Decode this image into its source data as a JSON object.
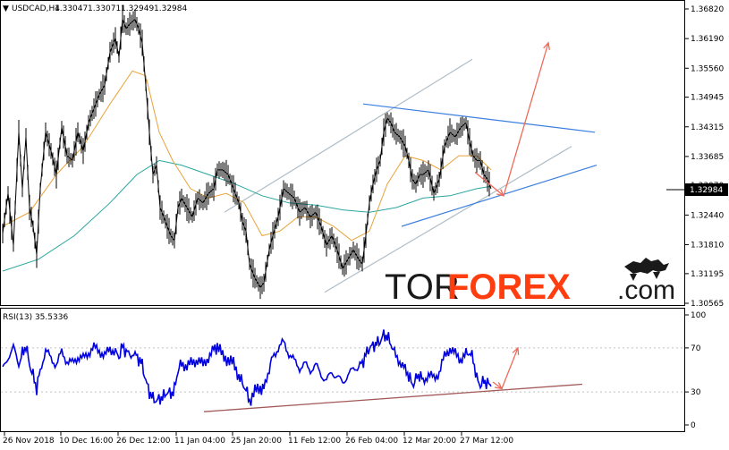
{
  "chart_data": [
    {
      "type": "line",
      "symbol": "USDCAD,H4",
      "ohlc": [
        "1.33047",
        "1.33071",
        "1.32949",
        "1.32984"
      ],
      "current_price_label": "1.32984",
      "ylim": [
        1.305,
        1.369
      ],
      "y_ticks": [
        "1.36820",
        "1.36190",
        "1.35560",
        "1.34945",
        "1.34315",
        "1.33685",
        "1.33070",
        "1.32440",
        "1.31810",
        "1.31195",
        "1.30565"
      ],
      "x_ticks": [
        "26 Nov 2018",
        "10 Dec 16:00",
        "26 Dec 12:00",
        "11 Jan 04:00",
        "25 Jan 20:00",
        "11 Feb 12:00",
        "26 Feb 04:00",
        "12 Mar 20:00",
        "27 Mar 12:00"
      ],
      "price_series": [
        [
          0,
          1.3205
        ],
        [
          6,
          1.329
        ],
        [
          12,
          1.318
        ],
        [
          18,
          1.342
        ],
        [
          22,
          1.33
        ],
        [
          26,
          1.341
        ],
        [
          30,
          1.326
        ],
        [
          34,
          1.322
        ],
        [
          38,
          1.316
        ],
        [
          42,
          1.33
        ],
        [
          48,
          1.342
        ],
        [
          54,
          1.338
        ],
        [
          60,
          1.333
        ],
        [
          66,
          1.343
        ],
        [
          72,
          1.337
        ],
        [
          78,
          1.336
        ],
        [
          84,
          1.342
        ],
        [
          90,
          1.338
        ],
        [
          96,
          1.344
        ],
        [
          102,
          1.347
        ],
        [
          108,
          1.35
        ],
        [
          114,
          1.352
        ],
        [
          120,
          1.359
        ],
        [
          126,
          1.362
        ],
        [
          130,
          1.358
        ],
        [
          134,
          1.366
        ],
        [
          138,
          1.364
        ],
        [
          142,
          1.365
        ],
        [
          148,
          1.366
        ],
        [
          152,
          1.364
        ],
        [
          156,
          1.361
        ],
        [
          160,
          1.352
        ],
        [
          164,
          1.342
        ],
        [
          168,
          1.333
        ],
        [
          172,
          1.335
        ],
        [
          176,
          1.326
        ],
        [
          180,
          1.324
        ],
        [
          184,
          1.322
        ],
        [
          188,
          1.32
        ],
        [
          192,
          1.319
        ],
        [
          196,
          1.326
        ],
        [
          200,
          1.328
        ],
        [
          206,
          1.326
        ],
        [
          212,
          1.324
        ],
        [
          218,
          1.328
        ],
        [
          224,
          1.327
        ],
        [
          230,
          1.329
        ],
        [
          236,
          1.33
        ],
        [
          240,
          1.334
        ],
        [
          246,
          1.334
        ],
        [
          252,
          1.333
        ],
        [
          258,
          1.33
        ],
        [
          264,
          1.327
        ],
        [
          268,
          1.323
        ],
        [
          272,
          1.321
        ],
        [
          276,
          1.314
        ],
        [
          282,
          1.311
        ],
        [
          288,
          1.309
        ],
        [
          292,
          1.31
        ],
        [
          298,
          1.317
        ],
        [
          302,
          1.32
        ],
        [
          308,
          1.324
        ],
        [
          314,
          1.33
        ],
        [
          320,
          1.329
        ],
        [
          326,
          1.328
        ],
        [
          332,
          1.325
        ],
        [
          338,
          1.326
        ],
        [
          344,
          1.324
        ],
        [
          350,
          1.325
        ],
        [
          356,
          1.322
        ],
        [
          362,
          1.318
        ],
        [
          368,
          1.32
        ],
        [
          374,
          1.317
        ],
        [
          380,
          1.313
        ],
        [
          386,
          1.315
        ],
        [
          392,
          1.317
        ],
        [
          398,
          1.315
        ],
        [
          402,
          1.314
        ],
        [
          406,
          1.32
        ],
        [
          410,
          1.327
        ],
        [
          414,
          1.331
        ],
        [
          418,
          1.334
        ],
        [
          422,
          1.336
        ],
        [
          426,
          1.342
        ],
        [
          430,
          1.345
        ],
        [
          434,
          1.344
        ],
        [
          438,
          1.342
        ],
        [
          444,
          1.341
        ],
        [
          450,
          1.339
        ],
        [
          454,
          1.336
        ],
        [
          458,
          1.332
        ],
        [
          462,
          1.331
        ],
        [
          466,
          1.333
        ],
        [
          470,
          1.333
        ],
        [
          476,
          1.334
        ],
        [
          482,
          1.329
        ],
        [
          488,
          1.332
        ],
        [
          494,
          1.339
        ],
        [
          500,
          1.342
        ],
        [
          506,
          1.341
        ],
        [
          512,
          1.343
        ],
        [
          518,
          1.344
        ],
        [
          522,
          1.34
        ],
        [
          526,
          1.337
        ],
        [
          530,
          1.336
        ],
        [
          534,
          1.336
        ],
        [
          538,
          1.333
        ],
        [
          542,
          1.332
        ],
        [
          546,
          1.33
        ]
      ],
      "ma_fast": [
        [
          0,
          1.322
        ],
        [
          30,
          1.325
        ],
        [
          60,
          1.333
        ],
        [
          90,
          1.339
        ],
        [
          120,
          1.348
        ],
        [
          145,
          1.355
        ],
        [
          160,
          1.354
        ],
        [
          175,
          1.342
        ],
        [
          190,
          1.336
        ],
        [
          210,
          1.33
        ],
        [
          230,
          1.328
        ],
        [
          250,
          1.329
        ],
        [
          270,
          1.327
        ],
        [
          290,
          1.32
        ],
        [
          310,
          1.321
        ],
        [
          330,
          1.324
        ],
        [
          350,
          1.324
        ],
        [
          370,
          1.322
        ],
        [
          390,
          1.319
        ],
        [
          410,
          1.321
        ],
        [
          430,
          1.331
        ],
        [
          450,
          1.337
        ],
        [
          470,
          1.336
        ],
        [
          490,
          1.334
        ],
        [
          510,
          1.337
        ],
        [
          530,
          1.337
        ],
        [
          546,
          1.334
        ]
      ],
      "ma_slow": [
        [
          0,
          1.3125
        ],
        [
          40,
          1.315
        ],
        [
          80,
          1.32
        ],
        [
          120,
          1.327
        ],
        [
          150,
          1.333
        ],
        [
          175,
          1.336
        ],
        [
          200,
          1.335
        ],
        [
          230,
          1.333
        ],
        [
          260,
          1.331
        ],
        [
          290,
          1.3285
        ],
        [
          320,
          1.327
        ],
        [
          350,
          1.3265
        ],
        [
          380,
          1.3255
        ],
        [
          410,
          1.325
        ],
        [
          440,
          1.326
        ],
        [
          470,
          1.328
        ],
        [
          500,
          1.3285
        ],
        [
          530,
          1.33
        ],
        [
          546,
          1.3305
        ]
      ],
      "channel_outer": [
        [
          [
            248,
            1.325
          ],
          [
            525,
            1.3575
          ]
        ],
        [
          [
            360,
            1.308
          ],
          [
            636,
            1.339
          ]
        ]
      ],
      "triangle_lines": [
        [
          [
            403,
            1.348
          ],
          [
            662,
            1.342
          ]
        ],
        [
          [
            446,
            1.322
          ],
          [
            664,
            1.335
          ]
        ]
      ],
      "forecast_arrows": [
        [
          [
            528,
            1.3335
          ],
          [
            560,
            1.3285
          ]
        ],
        [
          [
            560,
            1.3285
          ],
          [
            610,
            1.361
          ]
        ]
      ]
    },
    {
      "type": "line",
      "indicator_label": "RSI(13) 35.5336",
      "ylim": [
        0,
        100
      ],
      "y_ticks": [
        "100",
        "70",
        "30",
        "0"
      ],
      "rsi_series": [
        [
          0,
          50
        ],
        [
          6,
          62
        ],
        [
          12,
          70
        ],
        [
          18,
          55
        ],
        [
          22,
          65
        ],
        [
          26,
          72
        ],
        [
          30,
          55
        ],
        [
          34,
          45
        ],
        [
          38,
          33
        ],
        [
          42,
          50
        ],
        [
          48,
          68
        ],
        [
          54,
          60
        ],
        [
          60,
          55
        ],
        [
          66,
          66
        ],
        [
          72,
          58
        ],
        [
          78,
          56
        ],
        [
          84,
          62
        ],
        [
          90,
          60
        ],
        [
          96,
          66
        ],
        [
          102,
          70
        ],
        [
          108,
          68
        ],
        [
          114,
          62
        ],
        [
          120,
          70
        ],
        [
          126,
          66
        ],
        [
          130,
          62
        ],
        [
          134,
          72
        ],
        [
          138,
          66
        ],
        [
          142,
          65
        ],
        [
          148,
          64
        ],
        [
          152,
          60
        ],
        [
          156,
          55
        ],
        [
          160,
          40
        ],
        [
          164,
          30
        ],
        [
          168,
          24
        ],
        [
          172,
          22
        ],
        [
          176,
          24
        ],
        [
          180,
          26
        ],
        [
          184,
          30
        ],
        [
          188,
          28
        ],
        [
          192,
          32
        ],
        [
          196,
          50
        ],
        [
          200,
          56
        ],
        [
          206,
          54
        ],
        [
          212,
          56
        ],
        [
          218,
          60
        ],
        [
          224,
          54
        ],
        [
          230,
          62
        ],
        [
          236,
          68
        ],
        [
          240,
          72
        ],
        [
          246,
          62
        ],
        [
          252,
          60
        ],
        [
          258,
          55
        ],
        [
          264,
          45
        ],
        [
          268,
          38
        ],
        [
          272,
          32
        ],
        [
          276,
          22
        ],
        [
          282,
          30
        ],
        [
          288,
          34
        ],
        [
          292,
          32
        ],
        [
          298,
          52
        ],
        [
          302,
          62
        ],
        [
          308,
          70
        ],
        [
          314,
          75
        ],
        [
          320,
          65
        ],
        [
          326,
          58
        ],
        [
          332,
          52
        ],
        [
          338,
          55
        ],
        [
          344,
          50
        ],
        [
          350,
          54
        ],
        [
          356,
          46
        ],
        [
          362,
          40
        ],
        [
          368,
          48
        ],
        [
          374,
          44
        ],
        [
          380,
          38
        ],
        [
          386,
          46
        ],
        [
          392,
          50
        ],
        [
          398,
          54
        ],
        [
          402,
          56
        ],
        [
          406,
          64
        ],
        [
          410,
          70
        ],
        [
          414,
          72
        ],
        [
          418,
          74
        ],
        [
          422,
          76
        ],
        [
          426,
          82
        ],
        [
          430,
          80
        ],
        [
          434,
          74
        ],
        [
          438,
          65
        ],
        [
          444,
          58
        ],
        [
          450,
          50
        ],
        [
          454,
          45
        ],
        [
          458,
          36
        ],
        [
          462,
          42
        ],
        [
          466,
          46
        ],
        [
          470,
          40
        ],
        [
          476,
          46
        ],
        [
          482,
          42
        ],
        [
          488,
          48
        ],
        [
          494,
          62
        ],
        [
          500,
          70
        ],
        [
          506,
          64
        ],
        [
          512,
          60
        ],
        [
          518,
          64
        ],
        [
          522,
          66
        ],
        [
          526,
          60
        ],
        [
          530,
          42
        ],
        [
          534,
          36
        ],
        [
          538,
          40
        ],
        [
          542,
          38
        ],
        [
          546,
          35
        ]
      ],
      "trendline": [
        [
          225,
          12
        ],
        [
          648,
          37
        ]
      ],
      "forecast_arrows": [
        [
          [
            548,
            39
          ],
          [
            558,
            33
          ]
        ],
        [
          [
            558,
            33
          ],
          [
            576,
            70
          ]
        ]
      ]
    }
  ],
  "brand": {
    "part1": "TOR",
    "part2": "FOREX",
    "part3": ".com"
  },
  "colors": {
    "price": "#000000",
    "ma_fast": "#e8a33a",
    "ma_slow": "#2aa6a0",
    "channel": "#b0bec8",
    "triangle": "#3b7fe0",
    "forecast": "#f06a5a",
    "rsi": "#0000e0",
    "rsi_trend": "#a35a5a",
    "grid_border": "#000000"
  }
}
